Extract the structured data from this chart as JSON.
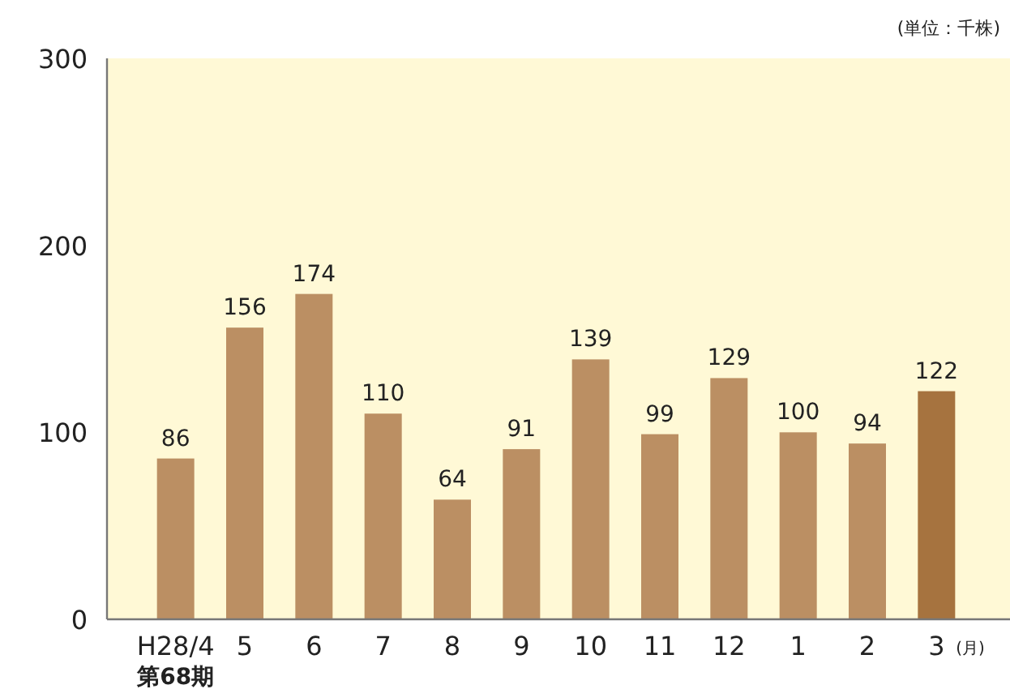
{
  "chart_data": {
    "type": "bar",
    "ylabel": "(単位：千株)",
    "xlabel": "(月)",
    "categories": [
      "H28/4",
      "5",
      "6",
      "7",
      "8",
      "9",
      "10",
      "11",
      "12",
      "1",
      "2",
      "3"
    ],
    "values": [
      86,
      156,
      174,
      110,
      64,
      91,
      139,
      99,
      129,
      100,
      94,
      122
    ],
    "colors": [
      "#bb8f63",
      "#bb8f63",
      "#bb8f63",
      "#bb8f63",
      "#bb8f63",
      "#bb8f63",
      "#bb8f63",
      "#bb8f63",
      "#bb8f63",
      "#bb8f63",
      "#bb8f63",
      "#a6733f"
    ],
    "ylim": [
      0,
      300
    ],
    "yticks": [
      0,
      100,
      200,
      300
    ],
    "data_labels": true,
    "annotations": [
      "第68期"
    ]
  }
}
